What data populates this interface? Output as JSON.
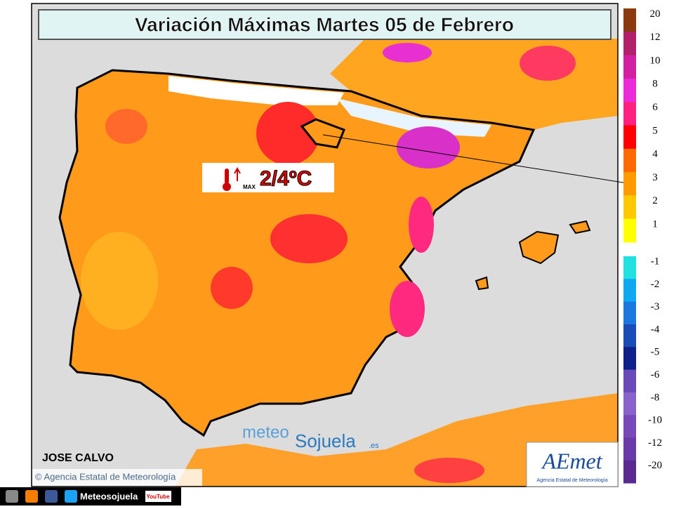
{
  "header": {
    "title": "Variación Máximas Martes 05 de Febrero"
  },
  "annotation": {
    "value": "2/4ºC",
    "unit": "MAX"
  },
  "author": "JOSE CALVO",
  "copyright": "© Agencia Estatal de Meteorología",
  "watermark": {
    "part1": "meteo",
    "part2": "Sojuela",
    "part3": ".es"
  },
  "logo": {
    "name": "AEmet",
    "subtitle": "Agencia Estatal de Meteorología"
  },
  "footer": {
    "name": "Meteosojuela",
    "youtube": "YouTube"
  },
  "legend": {
    "items": [
      {
        "label": 20,
        "color": "#8b3a0f"
      },
      {
        "label": 12,
        "color": "#b3206a"
      },
      {
        "label": 10,
        "color": "#d21ea0"
      },
      {
        "label": 8,
        "color": "#ec2ad8"
      },
      {
        "label": 6,
        "color": "#ff2080"
      },
      {
        "label": 5,
        "color": "#ff0000"
      },
      {
        "label": 4,
        "color": "#ff6a00"
      },
      {
        "label": 3,
        "color": "#ff9a00"
      },
      {
        "label": 2,
        "color": "#ffc800"
      },
      {
        "label": 1,
        "color": "#ffff00"
      },
      {
        "label": -1,
        "color": "#20e0e0"
      },
      {
        "label": -2,
        "color": "#10a8f0"
      },
      {
        "label": -3,
        "color": "#1a78e0"
      },
      {
        "label": -4,
        "color": "#1a4cb8"
      },
      {
        "label": -5,
        "color": "#10208a"
      },
      {
        "label": -6,
        "color": "#6a4ab8"
      },
      {
        "label": -8,
        "color": "#8a62cc"
      },
      {
        "label": -10,
        "color": "#7848b8"
      },
      {
        "label": -12,
        "color": "#6a3aa8"
      },
      {
        "label": -20,
        "color": "#5a2a90"
      }
    ]
  }
}
